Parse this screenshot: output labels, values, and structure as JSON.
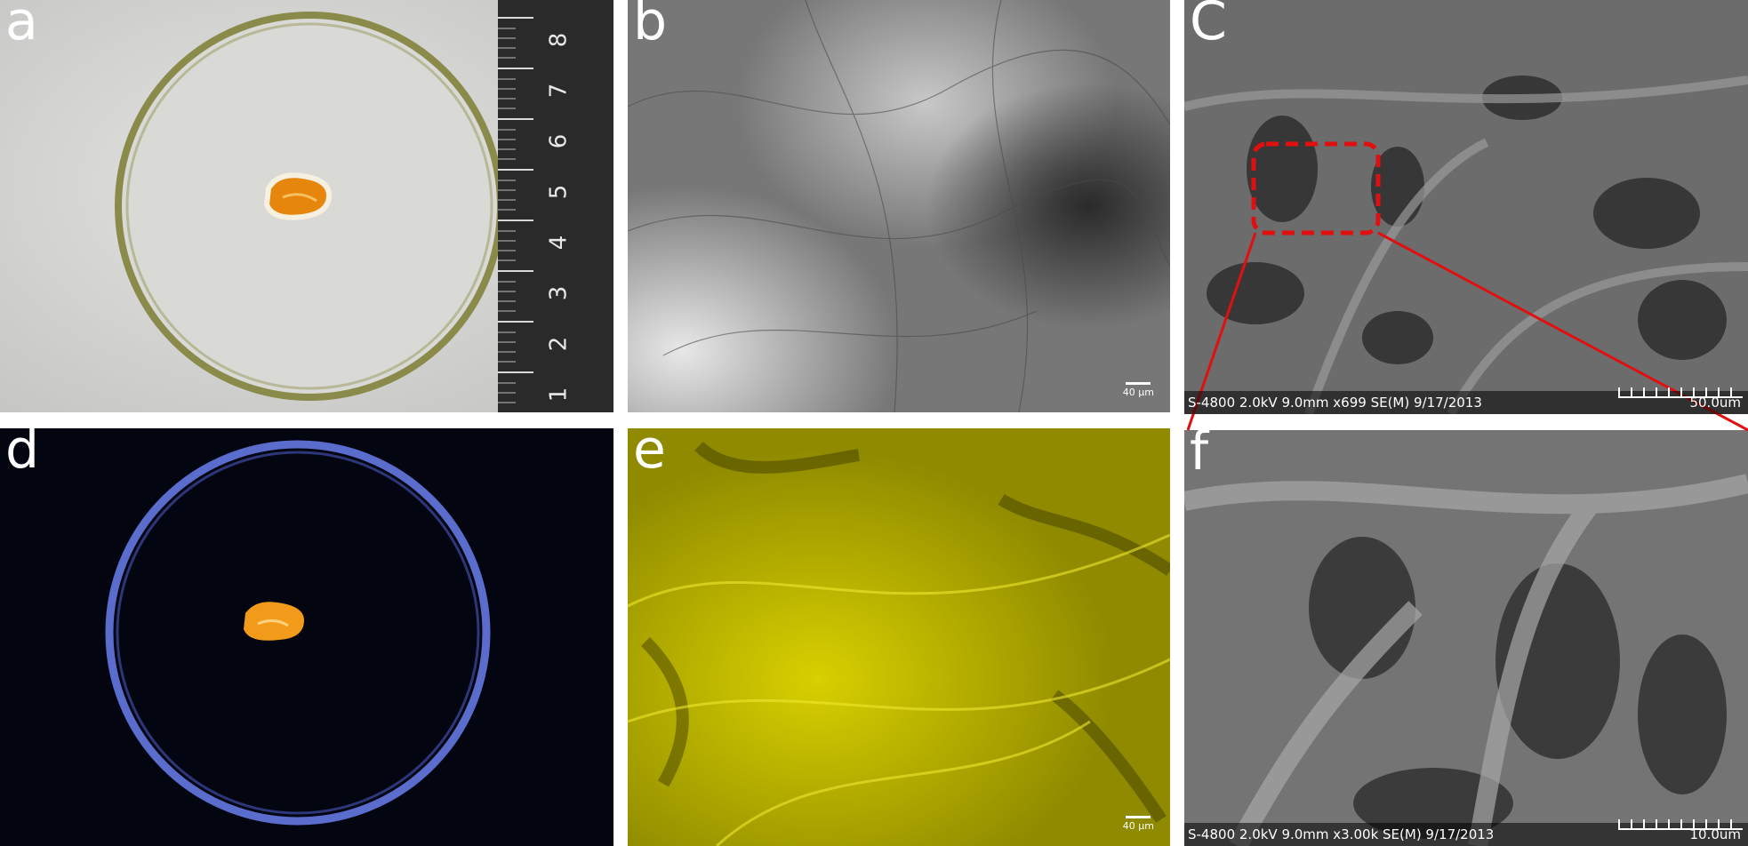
{
  "panels": {
    "a": {
      "letter": "a",
      "ruler_marks": [
        "8",
        "7",
        "6",
        "5",
        "4",
        "3",
        "2",
        "1"
      ]
    },
    "b": {
      "letter": "b",
      "scale_label": "40 µm"
    },
    "c": {
      "letter": "C",
      "sem_meta": "S-4800 2.0kV 9.0mm x699 SE(M) 9/17/2013",
      "scale_label": "50.0um"
    },
    "d": {
      "letter": "d"
    },
    "e": {
      "letter": "e",
      "scale_label": "40 µm"
    },
    "f": {
      "letter": "f",
      "sem_meta": "S-4800 2.0kV 9.0mm x3.00k SE(M) 9/17/2013",
      "scale_label": "10.0um"
    }
  },
  "colors": {
    "petri_rim": "#8a8a4a",
    "sample_orange": "#e6860d",
    "fluorescent_ring": "#5a6ccc",
    "fluorescence_yellow": "#c8c000",
    "zoom_box": "#e01010"
  }
}
